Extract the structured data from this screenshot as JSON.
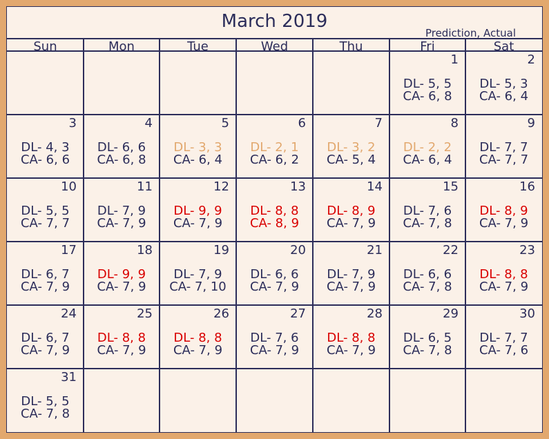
{
  "title": "March 2019",
  "legend": "Prediction, Actual",
  "colors": {
    "normal": "#2c2d5a",
    "low": "#e2a86e",
    "high": "#d90000"
  },
  "day_names": [
    "Sun",
    "Mon",
    "Tue",
    "Wed",
    "Thu",
    "Fri",
    "Sat"
  ],
  "first_weekday": 5,
  "days": [
    {
      "day": "1",
      "dl": "DL- 5, 5",
      "ca": "CA- 6, 8",
      "dl_status": "normal",
      "ca_status": "normal"
    },
    {
      "day": "2",
      "dl": "DL- 5, 3",
      "ca": "CA- 6, 4",
      "dl_status": "normal",
      "ca_status": "normal"
    },
    {
      "day": "3",
      "dl": "DL- 4, 3",
      "ca": "CA- 6, 6",
      "dl_status": "normal",
      "ca_status": "normal"
    },
    {
      "day": "4",
      "dl": "DL- 6, 6",
      "ca": "CA- 6, 8",
      "dl_status": "normal",
      "ca_status": "normal"
    },
    {
      "day": "5",
      "dl": "DL- 3, 3",
      "ca": "CA- 6, 4",
      "dl_status": "low",
      "ca_status": "normal"
    },
    {
      "day": "6",
      "dl": "DL- 2, 1",
      "ca": "CA- 6, 2",
      "dl_status": "low",
      "ca_status": "normal"
    },
    {
      "day": "7",
      "dl": "DL- 3, 2",
      "ca": "CA- 5, 4",
      "dl_status": "low",
      "ca_status": "normal"
    },
    {
      "day": "8",
      "dl": "DL- 2, 2",
      "ca": "CA- 6, 4",
      "dl_status": "low",
      "ca_status": "normal"
    },
    {
      "day": "9",
      "dl": "DL- 7, 7",
      "ca": "CA- 7, 7",
      "dl_status": "normal",
      "ca_status": "normal"
    },
    {
      "day": "10",
      "dl": "DL- 5, 5",
      "ca": "CA- 7, 7",
      "dl_status": "normal",
      "ca_status": "normal"
    },
    {
      "day": "11",
      "dl": "DL- 7, 9",
      "ca": "CA- 7, 9",
      "dl_status": "normal",
      "ca_status": "normal"
    },
    {
      "day": "12",
      "dl": "DL- 9, 9",
      "ca": "CA- 7, 9",
      "dl_status": "high",
      "ca_status": "normal"
    },
    {
      "day": "13",
      "dl": "DL- 8, 8",
      "ca": "CA- 8, 9",
      "dl_status": "high",
      "ca_status": "high"
    },
    {
      "day": "14",
      "dl": "DL- 8, 9",
      "ca": "CA- 7, 9",
      "dl_status": "high",
      "ca_status": "normal"
    },
    {
      "day": "15",
      "dl": "DL- 7, 6",
      "ca": "CA- 7, 8",
      "dl_status": "normal",
      "ca_status": "normal"
    },
    {
      "day": "16",
      "dl": "DL- 8, 9",
      "ca": "CA- 7, 9",
      "dl_status": "high",
      "ca_status": "normal"
    },
    {
      "day": "17",
      "dl": "DL- 6, 7",
      "ca": "CA- 7, 9",
      "dl_status": "normal",
      "ca_status": "normal"
    },
    {
      "day": "18",
      "dl": "DL- 9, 9",
      "ca": "CA- 7, 9",
      "dl_status": "high",
      "ca_status": "normal"
    },
    {
      "day": "19",
      "dl": "DL- 7, 9",
      "ca": "CA- 7, 10",
      "dl_status": "normal",
      "ca_status": "normal"
    },
    {
      "day": "20",
      "dl": "DL- 6, 6",
      "ca": "CA- 7, 9",
      "dl_status": "normal",
      "ca_status": "normal"
    },
    {
      "day": "21",
      "dl": "DL- 7, 9",
      "ca": "CA- 7, 9",
      "dl_status": "normal",
      "ca_status": "normal"
    },
    {
      "day": "22",
      "dl": "DL- 6, 6",
      "ca": "CA- 7, 8",
      "dl_status": "normal",
      "ca_status": "normal"
    },
    {
      "day": "23",
      "dl": "DL- 8, 8",
      "ca": "CA- 7, 9",
      "dl_status": "high",
      "ca_status": "normal"
    },
    {
      "day": "24",
      "dl": "DL- 6, 7",
      "ca": "CA- 7, 9",
      "dl_status": "normal",
      "ca_status": "normal"
    },
    {
      "day": "25",
      "dl": "DL- 8, 8",
      "ca": "CA- 7, 9",
      "dl_status": "high",
      "ca_status": "normal"
    },
    {
      "day": "26",
      "dl": "DL- 8, 8",
      "ca": "CA- 7, 9",
      "dl_status": "high",
      "ca_status": "normal"
    },
    {
      "day": "27",
      "dl": "DL- 7, 6",
      "ca": "CA- 7, 9",
      "dl_status": "normal",
      "ca_status": "normal"
    },
    {
      "day": "28",
      "dl": "DL- 8, 8",
      "ca": "CA- 7, 9",
      "dl_status": "high",
      "ca_status": "normal"
    },
    {
      "day": "29",
      "dl": "DL- 6, 5",
      "ca": "CA- 7, 8",
      "dl_status": "normal",
      "ca_status": "normal"
    },
    {
      "day": "30",
      "dl": "DL- 7, 7",
      "ca": "CA- 7, 6",
      "dl_status": "normal",
      "ca_status": "normal"
    },
    {
      "day": "31",
      "dl": "DL- 5, 5",
      "ca": "CA- 7, 8",
      "dl_status": "normal",
      "ca_status": "normal"
    }
  ]
}
